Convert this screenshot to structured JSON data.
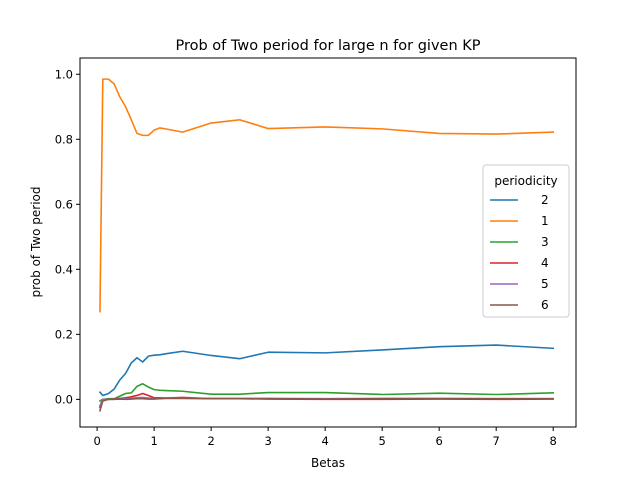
{
  "chart_data": {
    "type": "line",
    "title": "Prob of Two period for large n for given KP",
    "xlabel": "Betas",
    "ylabel": "prob of Two period",
    "xlim": [
      -0.3,
      8.4
    ],
    "ylim": [
      -0.085,
      1.05
    ],
    "xticks": [
      0,
      1,
      2,
      3,
      4,
      5,
      6,
      7,
      8
    ],
    "xtick_labels": [
      "0",
      "1",
      "2",
      "3",
      "4",
      "5",
      "6",
      "7",
      "8"
    ],
    "yticks": [
      0.0,
      0.2,
      0.4,
      0.6,
      0.8,
      1.0
    ],
    "ytick_labels": [
      "0.0",
      "0.2",
      "0.4",
      "0.6",
      "0.8",
      "1.0"
    ],
    "grid": false,
    "legend": {
      "title": "periodicity",
      "placement": "center-right"
    },
    "x": [
      0.05,
      0.1,
      0.2,
      0.3,
      0.4,
      0.5,
      0.6,
      0.7,
      0.8,
      0.9,
      1.0,
      1.1,
      1.2,
      1.5,
      2.0,
      2.5,
      3.0,
      4.0,
      5.0,
      6.0,
      7.0,
      8.0
    ],
    "series": [
      {
        "name": "2",
        "color": "#1f77b4",
        "values": [
          0.022,
          0.012,
          0.018,
          0.032,
          0.06,
          0.08,
          0.112,
          0.128,
          0.115,
          0.133,
          0.136,
          0.137,
          0.14,
          0.148,
          0.135,
          0.125,
          0.145,
          0.143,
          0.152,
          0.162,
          0.167,
          0.157
        ]
      },
      {
        "name": "1",
        "color": "#ff7f0e",
        "values": [
          0.27,
          0.985,
          0.985,
          0.97,
          0.93,
          0.9,
          0.86,
          0.818,
          0.812,
          0.812,
          0.828,
          0.835,
          0.832,
          0.822,
          0.85,
          0.86,
          0.833,
          0.838,
          0.832,
          0.818,
          0.816,
          0.822
        ]
      },
      {
        "name": "3",
        "color": "#2ca02c",
        "values": [
          -0.005,
          0.0,
          0.002,
          0.002,
          0.01,
          0.018,
          0.02,
          0.04,
          0.048,
          0.038,
          0.03,
          0.028,
          0.027,
          0.025,
          0.016,
          0.016,
          0.021,
          0.021,
          0.015,
          0.019,
          0.015,
          0.02
        ]
      },
      {
        "name": "4",
        "color": "#d62728",
        "values": [
          -0.025,
          0.0,
          0.0,
          0.001,
          0.003,
          0.005,
          0.008,
          0.012,
          0.018,
          0.012,
          0.005,
          0.005,
          0.004,
          0.006,
          0.002,
          0.002,
          0.001,
          0.0,
          0.0,
          0.001,
          0.0,
          0.001
        ]
      },
      {
        "name": "5",
        "color": "#9467bd",
        "values": [
          -0.02,
          0.0,
          0.0,
          0.0,
          0.002,
          0.002,
          0.004,
          0.005,
          0.006,
          0.004,
          0.002,
          0.003,
          0.004,
          0.004,
          0.003,
          0.003,
          0.003,
          0.002,
          0.003,
          0.003,
          0.002,
          0.002
        ]
      },
      {
        "name": "6",
        "color": "#8c564b",
        "values": [
          -0.035,
          -0.005,
          0.0,
          0.0,
          0.001,
          0.0,
          0.001,
          0.002,
          0.002,
          0.001,
          0.001,
          0.002,
          0.003,
          0.003,
          0.002,
          0.002,
          0.002,
          0.001,
          0.002,
          0.002,
          0.002,
          0.002
        ]
      }
    ]
  }
}
